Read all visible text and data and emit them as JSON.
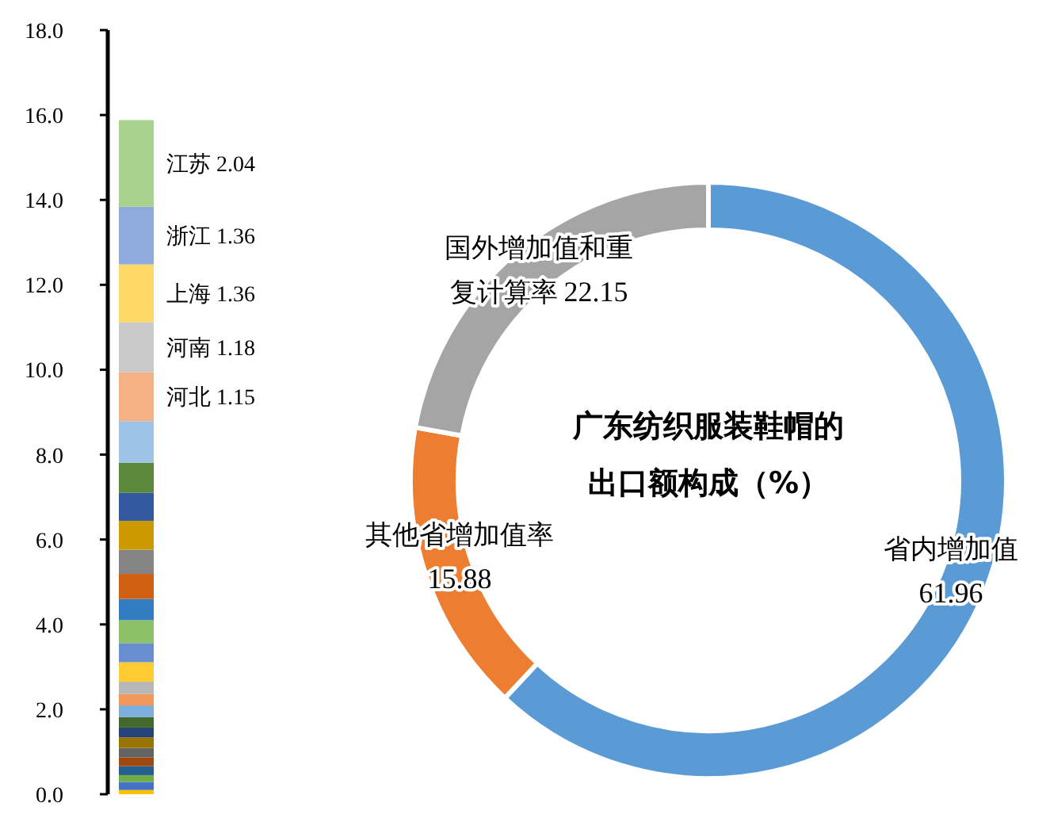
{
  "chart_data": [
    {
      "type": "bar",
      "stacked": true,
      "categories": [
        null
      ],
      "ylim": [
        0,
        18
      ],
      "yticks": [
        {
          "value": 0,
          "label": "0.0"
        },
        {
          "value": 2,
          "label": "2.0"
        },
        {
          "value": 4,
          "label": "4.0"
        },
        {
          "value": 6,
          "label": "6.0"
        },
        {
          "value": 8,
          "label": "8.0"
        },
        {
          "value": 10,
          "label": "10.0"
        },
        {
          "value": 12,
          "label": "12.0"
        },
        {
          "value": 14,
          "label": "14.0"
        },
        {
          "value": 16,
          "label": "16.0"
        },
        {
          "value": 18,
          "label": "18.0"
        }
      ],
      "series": [
        {
          "color": "#ffc000",
          "values": [
            0.1
          ]
        },
        {
          "color": "#4472c4",
          "values": [
            0.19
          ]
        },
        {
          "color": "#70ad47",
          "values": [
            0.16
          ]
        },
        {
          "color": "#255e91",
          "values": [
            0.21
          ]
        },
        {
          "color": "#9e480e",
          "values": [
            0.21
          ]
        },
        {
          "color": "#636363",
          "values": [
            0.22
          ]
        },
        {
          "color": "#997300",
          "values": [
            0.25
          ]
        },
        {
          "color": "#264478",
          "values": [
            0.23
          ]
        },
        {
          "color": "#43682b",
          "values": [
            0.25
          ]
        },
        {
          "color": "#7cafdd",
          "values": [
            0.27
          ]
        },
        {
          "color": "#f1975a",
          "values": [
            0.27
          ]
        },
        {
          "color": "#b7b7b7",
          "values": [
            0.29
          ]
        },
        {
          "color": "#ffcd33",
          "values": [
            0.46
          ]
        },
        {
          "color": "#698ed0",
          "values": [
            0.45
          ]
        },
        {
          "color": "#8cc168",
          "values": [
            0.54
          ]
        },
        {
          "color": "#327dc2",
          "values": [
            0.5
          ]
        },
        {
          "color": "#d26012",
          "values": [
            0.59
          ]
        },
        {
          "color": "#848484",
          "values": [
            0.57
          ]
        },
        {
          "color": "#cc9a00",
          "values": [
            0.68
          ]
        },
        {
          "color": "#335aa1",
          "values": [
            0.66
          ]
        },
        {
          "color": "#5a8a39",
          "values": [
            0.71
          ]
        },
        {
          "color": "#9dc3e6",
          "values": [
            0.98
          ]
        },
        {
          "name": "河北 1.15",
          "color": "#f4b183",
          "values": [
            1.15
          ]
        },
        {
          "name": "河南 1.18",
          "color": "#c9c9c9",
          "values": [
            1.18
          ]
        },
        {
          "name": "上海 1.36",
          "color": "#ffd966",
          "values": [
            1.36
          ]
        },
        {
          "name": "浙江 1.36",
          "color": "#8faadc",
          "values": [
            1.36
          ]
        },
        {
          "name": "江苏 2.04",
          "color": "#a9d18e",
          "values": [
            2.04
          ]
        }
      ]
    },
    {
      "type": "donut",
      "title": "广东纺织服装鞋帽的出口额构成（%）",
      "categories": [
        "省内增加值",
        "其他省增加值率",
        "国外增加值和重复计算率"
      ],
      "values": [
        61.96,
        15.88,
        22.15
      ],
      "colors": [
        "#5b9bd5",
        "#ed7d31",
        "#a5a5a5"
      ],
      "data_labels": true
    }
  ]
}
